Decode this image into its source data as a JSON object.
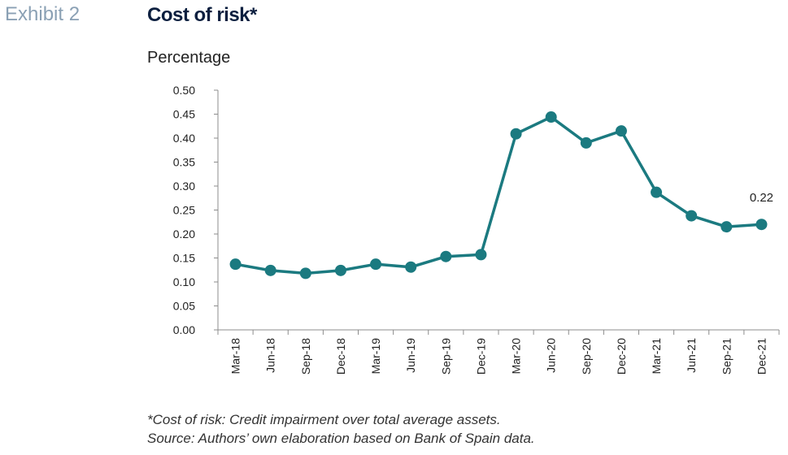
{
  "header": {
    "exhibit_label": "Exhibit 2",
    "title": "Cost of risk*",
    "unit_label": "Percentage"
  },
  "notes": {
    "definition": "*Cost of risk: Credit impairment over total average assets.",
    "source": "Source: Authors’ own elaboration based on Bank of Spain data."
  },
  "colors": {
    "series": "#1b7a80",
    "axis": "#8c8c8c"
  },
  "chart_data": {
    "type": "line",
    "x": [
      "Mar-18",
      "Jun-18",
      "Sep-18",
      "Dec-18",
      "Mar-19",
      "Jun-19",
      "Sep-19",
      "Dec-19",
      "Mar-20",
      "Jun-20",
      "Sep-20",
      "Dec-20",
      "Mar-21",
      "Jun-21",
      "Sep-21",
      "Dec-21"
    ],
    "series": [
      {
        "values": [
          0.137,
          0.124,
          0.118,
          0.124,
          0.137,
          0.131,
          0.153,
          0.157,
          0.409,
          0.444,
          0.39,
          0.415,
          0.287,
          0.238,
          0.215,
          0.22
        ]
      }
    ],
    "ylim": [
      0,
      0.5
    ],
    "yticks": [
      "0.00",
      "0.05",
      "0.10",
      "0.15",
      "0.20",
      "0.25",
      "0.30",
      "0.35",
      "0.40",
      "0.45",
      "0.50"
    ],
    "data_labels": [
      {
        "index": 15,
        "text": "0.22"
      }
    ],
    "grid": false,
    "legend": "none"
  }
}
